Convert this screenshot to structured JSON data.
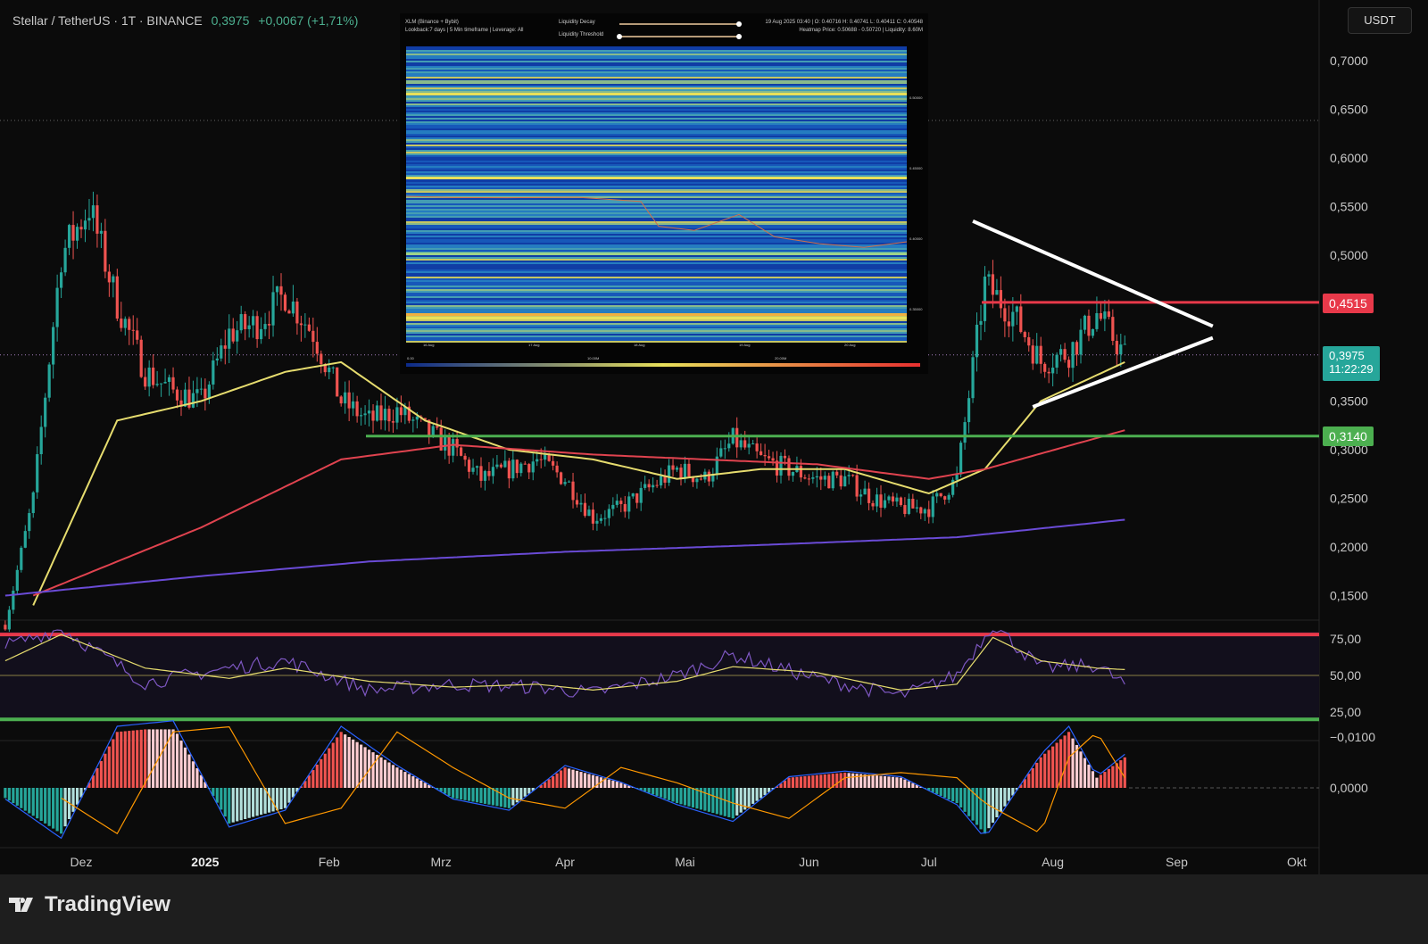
{
  "header": {
    "symbol": "Stellar / TetherUS · 1T · BINANCE",
    "price": "0,3975",
    "change": "+0,0067 (+1,71%)"
  },
  "currency_button": "USDT",
  "footer": {
    "brand": "TradingView"
  },
  "price_axis": {
    "ticks": [
      "0,7000",
      "0,6500",
      "0,6000",
      "0,5500",
      "0,5000",
      "0,3500",
      "0,3000",
      "0,2500",
      "0,2000",
      "0,1500"
    ],
    "labels": {
      "resistance": "0,4515",
      "current": "0,3975",
      "countdown": "11:22:29",
      "support": "0,3140"
    },
    "colors": {
      "resistance": "#e8394a",
      "current": "#26a69a",
      "support": "#4caf50"
    }
  },
  "time_axis": [
    "Dez",
    "2025",
    "Feb",
    "Mrz",
    "Apr",
    "Mai",
    "Jun",
    "Jul",
    "Aug",
    "Sep",
    "Okt"
  ],
  "rsi_axis": [
    "75,00",
    "50,00",
    "25,00"
  ],
  "macd_axis": [
    "0,0000",
    "−0,0100"
  ],
  "inset": {
    "title": "XLM (Binance + Bybit)",
    "subtitle": "Lookback:7 days | 5 Min timeframe | Leverage: All",
    "slider1": "Liquidity Decay",
    "slider1_value": 1.0,
    "slider2": "Liquidity Threshold",
    "slider2_value": 0.0,
    "ohlc": "19 Aug 2025 03:40 | O: 0.40716 H: 0.40741 L: 0.40411 C: 0.40548",
    "heatmap_info": "Heatmap Price: 0.50688 - 0.50720 | Liquidity: 8.60M",
    "y_ticks": [
      "0.50000",
      "0.45000",
      "0.40000",
      "0.35000"
    ],
    "x_ticks": [
      "16 Aug",
      "17 Aug",
      "18 Aug",
      "19 Aug",
      "20 Aug"
    ],
    "colorbar_ticks": [
      "0.00",
      "10.00M",
      "20.00M"
    ]
  },
  "chart_data": {
    "type": "candlestick",
    "ylim": [
      0.12,
      0.72
    ],
    "closes": {
      "dates": [
        "2024-11-12",
        "2024-11-19",
        "2024-11-26",
        "2024-12-03",
        "2024-12-10",
        "2024-12-17",
        "2024-12-24",
        "2024-12-31",
        "2025-01-07",
        "2025-01-14",
        "2025-01-21",
        "2025-01-28",
        "2025-02-04",
        "2025-02-11",
        "2025-02-18",
        "2025-02-25",
        "2025-03-04",
        "2025-03-11",
        "2025-03-18",
        "2025-03-25",
        "2025-04-01",
        "2025-04-08",
        "2025-04-15",
        "2025-04-22",
        "2025-04-29",
        "2025-05-06",
        "2025-05-13",
        "2025-05-20",
        "2025-05-27",
        "2025-06-03",
        "2025-06-10",
        "2025-06-17",
        "2025-06-24",
        "2025-07-01",
        "2025-07-08",
        "2025-07-15",
        "2025-07-22",
        "2025-07-29",
        "2025-08-05",
        "2025-08-12",
        "2025-08-19"
      ],
      "values": [
        0.12,
        0.25,
        0.5,
        0.55,
        0.45,
        0.38,
        0.36,
        0.35,
        0.42,
        0.43,
        0.46,
        0.42,
        0.35,
        0.33,
        0.34,
        0.32,
        0.3,
        0.27,
        0.28,
        0.29,
        0.27,
        0.23,
        0.24,
        0.26,
        0.28,
        0.27,
        0.31,
        0.29,
        0.28,
        0.27,
        0.27,
        0.25,
        0.24,
        0.24,
        0.27,
        0.47,
        0.44,
        0.39,
        0.4,
        0.44,
        0.3975
      ]
    },
    "moving_averages": [
      {
        "color": "#e6dc6e",
        "dates": [
          "2024-11-19",
          "2024-12-10",
          "2024-12-31",
          "2025-01-21",
          "2025-02-04",
          "2025-02-25",
          "2025-03-18",
          "2025-04-08",
          "2025-04-29",
          "2025-05-20",
          "2025-06-10",
          "2025-07-01",
          "2025-07-15",
          "2025-07-29",
          "2025-08-19"
        ],
        "values": [
          0.14,
          0.33,
          0.35,
          0.38,
          0.39,
          0.33,
          0.3,
          0.29,
          0.27,
          0.28,
          0.28,
          0.255,
          0.28,
          0.35,
          0.39
        ]
      },
      {
        "color": "#e0434f",
        "dates": [
          "2024-11-19",
          "2024-12-31",
          "2025-02-04",
          "2025-03-04",
          "2025-04-08",
          "2025-05-06",
          "2025-06-03",
          "2025-07-01",
          "2025-07-15",
          "2025-08-19"
        ],
        "values": [
          0.15,
          0.22,
          0.29,
          0.305,
          0.295,
          0.29,
          0.285,
          0.27,
          0.28,
          0.32
        ]
      },
      {
        "color": "#6a4bd6",
        "dates": [
          "2024-11-12",
          "2024-12-31",
          "2025-02-11",
          "2025-04-01",
          "2025-05-20",
          "2025-07-08",
          "2025-08-19"
        ],
        "values": [
          0.15,
          0.17,
          0.185,
          0.195,
          0.202,
          0.21,
          0.228
        ]
      }
    ],
    "horizontal_levels": [
      {
        "value": 0.4515,
        "color": "#e8394a"
      },
      {
        "value": 0.314,
        "color": "#4caf50"
      }
    ],
    "triangle": {
      "upper": [
        [
          "2025-07-12",
          0.535
        ],
        [
          "2025-09-10",
          0.427
        ]
      ],
      "lower": [
        [
          "2025-07-27",
          0.344
        ],
        [
          "2025-09-10",
          0.415
        ]
      ]
    },
    "rsi": {
      "levels": [
        78,
        20
      ],
      "dates": [
        "2024-11-12",
        "2024-11-26",
        "2024-12-17",
        "2025-01-07",
        "2025-01-21",
        "2025-02-11",
        "2025-03-04",
        "2025-03-25",
        "2025-04-08",
        "2025-04-29",
        "2025-05-13",
        "2025-06-03",
        "2025-06-24",
        "2025-07-08",
        "2025-07-17",
        "2025-07-29",
        "2025-08-12",
        "2025-08-19"
      ],
      "values": [
        70,
        82,
        45,
        55,
        60,
        40,
        44,
        42,
        38,
        50,
        64,
        48,
        36,
        50,
        85,
        55,
        57,
        44
      ],
      "signal": [
        60,
        78,
        55,
        48,
        55,
        46,
        42,
        44,
        40,
        46,
        56,
        52,
        40,
        44,
        76,
        60,
        55,
        54
      ]
    },
    "macd_hist": {
      "dates": [
        "2024-11-12",
        "2024-11-26",
        "2024-12-10",
        "2024-12-24",
        "2025-01-07",
        "2025-01-21",
        "2025-02-04",
        "2025-02-18",
        "2025-03-04",
        "2025-03-18",
        "2025-04-01",
        "2025-04-15",
        "2025-04-29",
        "2025-05-13",
        "2025-05-27",
        "2025-06-10",
        "2025-06-24",
        "2025-07-08",
        "2025-07-15",
        "2025-07-29",
        "2025-08-05",
        "2025-08-12",
        "2025-08-19"
      ],
      "values": [
        0.002,
        0.009,
        -0.011,
        -0.012,
        0.007,
        0.004,
        -0.011,
        -0.004,
        0.002,
        0.004,
        -0.004,
        -0.001,
        0.003,
        0.006,
        -0.002,
        -0.003,
        -0.002,
        0.003,
        0.009,
        -0.006,
        -0.011,
        -0.002,
        -0.006
      ]
    }
  }
}
